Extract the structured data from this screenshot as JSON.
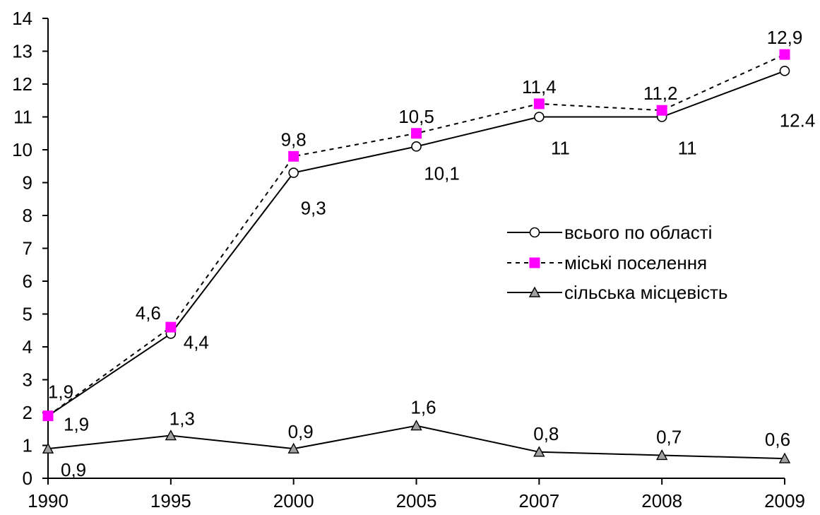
{
  "chart_data": {
    "type": "line",
    "categories": [
      "1990",
      "1995",
      "2000",
      "2005",
      "2007",
      "2008",
      "2009"
    ],
    "ylim": [
      0,
      14
    ],
    "yticks": [
      "0",
      "1",
      "2",
      "3",
      "4",
      "5",
      "6",
      "7",
      "8",
      "9",
      "10",
      "11",
      "12",
      "13",
      "14"
    ],
    "grid": false,
    "legend_position": "right",
    "series": [
      {
        "name": "всього по області",
        "values": [
          1.9,
          4.4,
          9.3,
          10.1,
          11,
          11,
          12.4
        ],
        "labels": [
          "1,9",
          "4,4",
          "9,3",
          "10,1",
          "11",
          "11",
          "12.4"
        ],
        "line_style": "solid",
        "marker": "circle",
        "color": "#000000",
        "marker_fill": "#ffffff"
      },
      {
        "name": "міські поселення",
        "values": [
          1.9,
          4.6,
          9.8,
          10.5,
          11.4,
          11.2,
          12.9
        ],
        "labels": [
          "1,9",
          "4,6",
          "9,8",
          "10,5",
          "11,4",
          "11,2",
          "12,9"
        ],
        "line_style": "dotted",
        "marker": "square",
        "color": "#000000",
        "marker_fill": "#ff00ff"
      },
      {
        "name": "сільська місцевість",
        "values": [
          0.9,
          1.3,
          0.9,
          1.6,
          0.8,
          0.7,
          0.6
        ],
        "labels": [
          "0,9",
          "1,3",
          "0,9",
          "1,6",
          "0,8",
          "0,7",
          "0,6"
        ],
        "line_style": "solid",
        "marker": "triangle",
        "color": "#000000",
        "marker_fill": "#a0a0a0"
      }
    ]
  }
}
